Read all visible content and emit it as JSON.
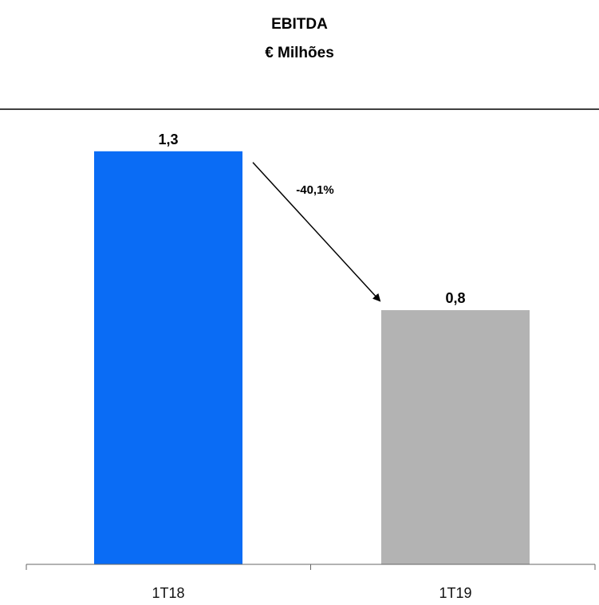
{
  "chart_data": {
    "type": "bar",
    "title": "EBITDA",
    "subtitle": "€ Milhões",
    "categories": [
      "1T18",
      "1T19"
    ],
    "values": [
      1.3,
      0.8
    ],
    "value_labels": [
      "1,3",
      "0,8"
    ],
    "bar_colors": [
      "#0a6cf5",
      "#b3b3b3"
    ],
    "ylim": [
      0,
      1.45
    ],
    "grid": false,
    "annotation": {
      "text": "-40,1%",
      "from": "1T18",
      "to": "1T19"
    }
  }
}
